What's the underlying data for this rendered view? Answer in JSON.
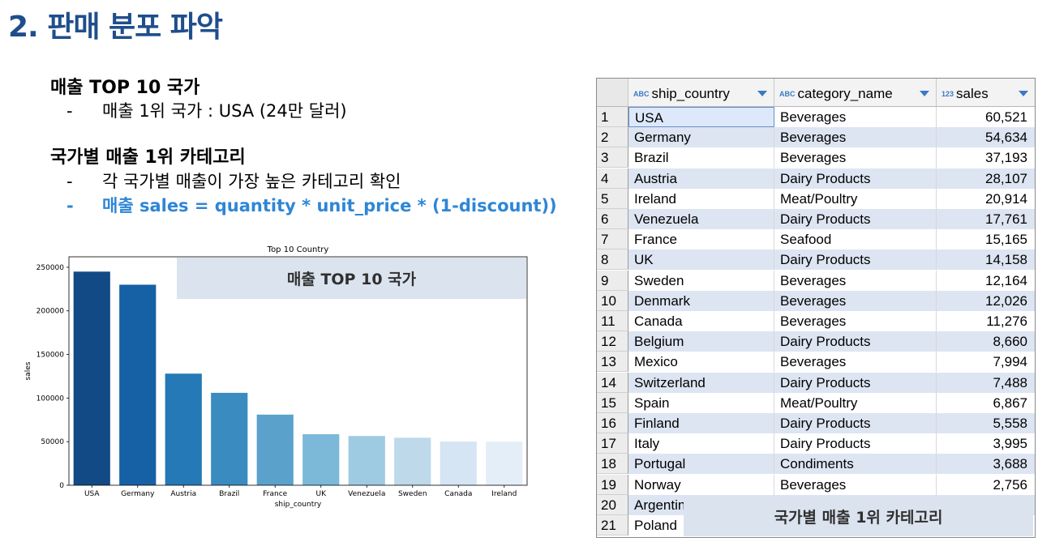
{
  "slide": {
    "title": "2. 판매 분포 파악",
    "section1": {
      "heading": "매출 TOP 10 국가",
      "bullet": "매출 1위 국가 :  USA (24만 달러)"
    },
    "section2": {
      "heading": "국가별 매출 1위 카테고리",
      "bullet": "각 국가별 매출이 가장 높은 카테고리 확인",
      "formula": "매출 sales = quantity * unit_price * (1-discount))"
    },
    "dash": "-"
  },
  "overlays": {
    "chart_label": "매출 TOP 10 국가",
    "table_label": "국가별 매출 1위 카테고리"
  },
  "chart_data": {
    "type": "bar",
    "title": "Top 10 Country",
    "xlabel": "ship_country",
    "ylabel": "sales",
    "categories": [
      "USA",
      "Germany",
      "Austria",
      "Brazil",
      "France",
      "UK",
      "Venezuela",
      "Sweden",
      "Canada",
      "Ireland"
    ],
    "values": [
      245000,
      230000,
      128000,
      106000,
      81000,
      58500,
      56500,
      54500,
      50200,
      50000
    ],
    "yticks": [
      0,
      50000,
      100000,
      150000,
      200000,
      250000
    ],
    "ylim": [
      0,
      262000
    ],
    "colors": [
      "#124a86",
      "#1660a6",
      "#2479b6",
      "#3a8cc0",
      "#5aa2cc",
      "#7cb8d7",
      "#9ecbe1",
      "#bdd9ea",
      "#d5e5f3",
      "#e4eef8"
    ]
  },
  "table": {
    "columns": [
      {
        "name": "ship_country",
        "type_icon": "ABC"
      },
      {
        "name": "category_name",
        "type_icon": "ABC"
      },
      {
        "name": "sales",
        "type_icon": "123"
      }
    ],
    "rows": [
      {
        "num": "1",
        "country": "USA",
        "category": "Beverages",
        "sales": "60,521"
      },
      {
        "num": "2",
        "country": "Germany",
        "category": "Beverages",
        "sales": "54,634"
      },
      {
        "num": "3",
        "country": "Brazil",
        "category": "Beverages",
        "sales": "37,193"
      },
      {
        "num": "4",
        "country": "Austria",
        "category": "Dairy Products",
        "sales": "28,107"
      },
      {
        "num": "5",
        "country": "Ireland",
        "category": "Meat/Poultry",
        "sales": "20,914"
      },
      {
        "num": "6",
        "country": "Venezuela",
        "category": "Dairy Products",
        "sales": "17,761"
      },
      {
        "num": "7",
        "country": "France",
        "category": "Seafood",
        "sales": "15,165"
      },
      {
        "num": "8",
        "country": "UK",
        "category": "Dairy Products",
        "sales": "14,158"
      },
      {
        "num": "9",
        "country": "Sweden",
        "category": "Beverages",
        "sales": "12,164"
      },
      {
        "num": "10",
        "country": "Denmark",
        "category": "Beverages",
        "sales": "12,026"
      },
      {
        "num": "11",
        "country": "Canada",
        "category": "Beverages",
        "sales": "11,276"
      },
      {
        "num": "12",
        "country": "Belgium",
        "category": "Dairy Products",
        "sales": "8,660"
      },
      {
        "num": "13",
        "country": "Mexico",
        "category": "Beverages",
        "sales": "7,994"
      },
      {
        "num": "14",
        "country": "Switzerland",
        "category": "Dairy Products",
        "sales": "7,488"
      },
      {
        "num": "15",
        "country": "Spain",
        "category": "Meat/Poultry",
        "sales": "6,867"
      },
      {
        "num": "16",
        "country": "Finland",
        "category": "Dairy Products",
        "sales": "5,558"
      },
      {
        "num": "17",
        "country": "Italy",
        "category": "Dairy Products",
        "sales": "3,995"
      },
      {
        "num": "18",
        "country": "Portugal",
        "category": "Condiments",
        "sales": "3,688"
      },
      {
        "num": "19",
        "country": "Norway",
        "category": "Beverages",
        "sales": "2,756"
      },
      {
        "num": "20",
        "country": "Argentin",
        "category": "",
        "sales": ""
      },
      {
        "num": "21",
        "country": "Poland",
        "category": "",
        "sales": ""
      }
    ]
  }
}
